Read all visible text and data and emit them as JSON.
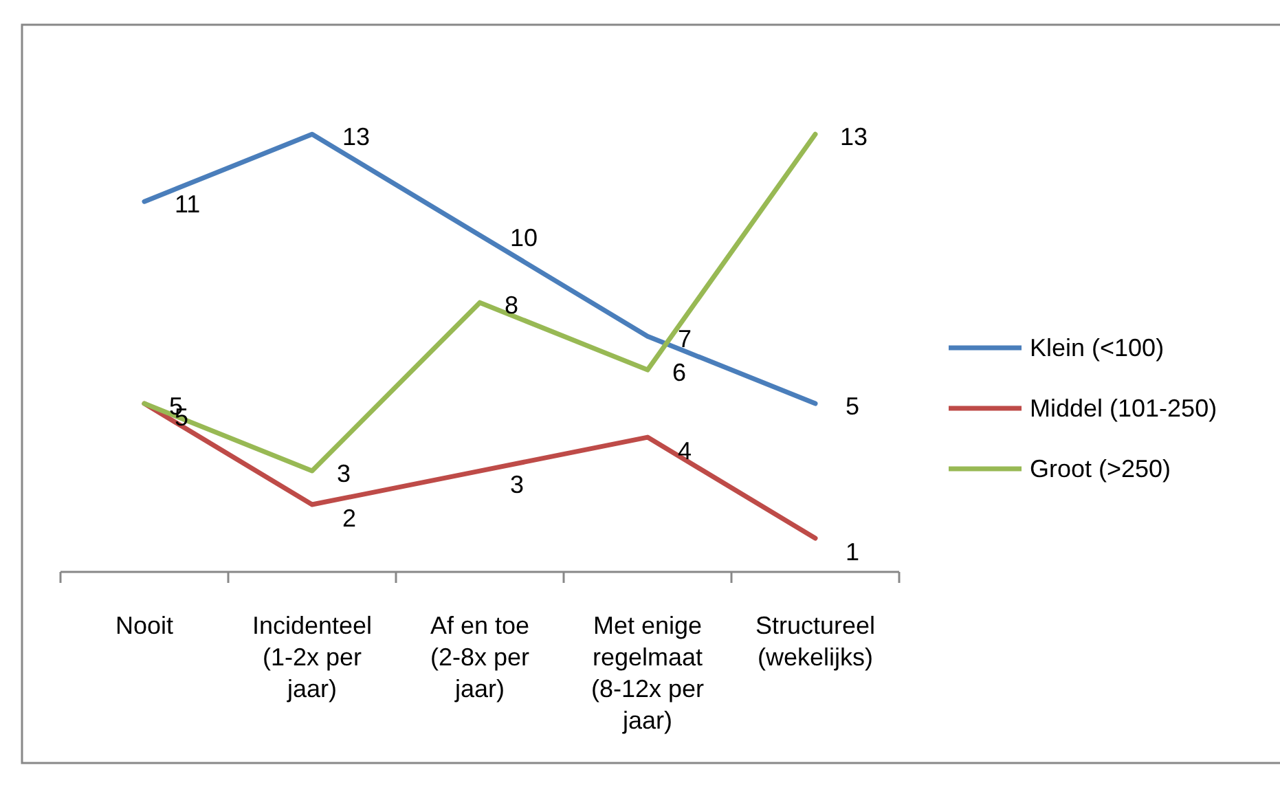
{
  "chart_data": {
    "type": "line",
    "categories": [
      "Nooit",
      "Incidenteel (1-2x per jaar)",
      "Af en toe (2-8x per jaar)",
      "Met enige regelmaat (8-12x per jaar)",
      "Structureel (wekelijks)"
    ],
    "series": [
      {
        "name": "Klein (<100)",
        "color": "#4a7ebb",
        "values": [
          11,
          13,
          10,
          7,
          5
        ]
      },
      {
        "name": "Middel (101-250)",
        "color": "#be4b48",
        "values": [
          5,
          2,
          3,
          4,
          1
        ]
      },
      {
        "name": "Groot (>250)",
        "color": "#98b954",
        "values": [
          5,
          3,
          8,
          6,
          13
        ]
      }
    ],
    "data_labels": true,
    "legend": "right",
    "marker": "none",
    "line_style": "solid",
    "grid": false
  }
}
